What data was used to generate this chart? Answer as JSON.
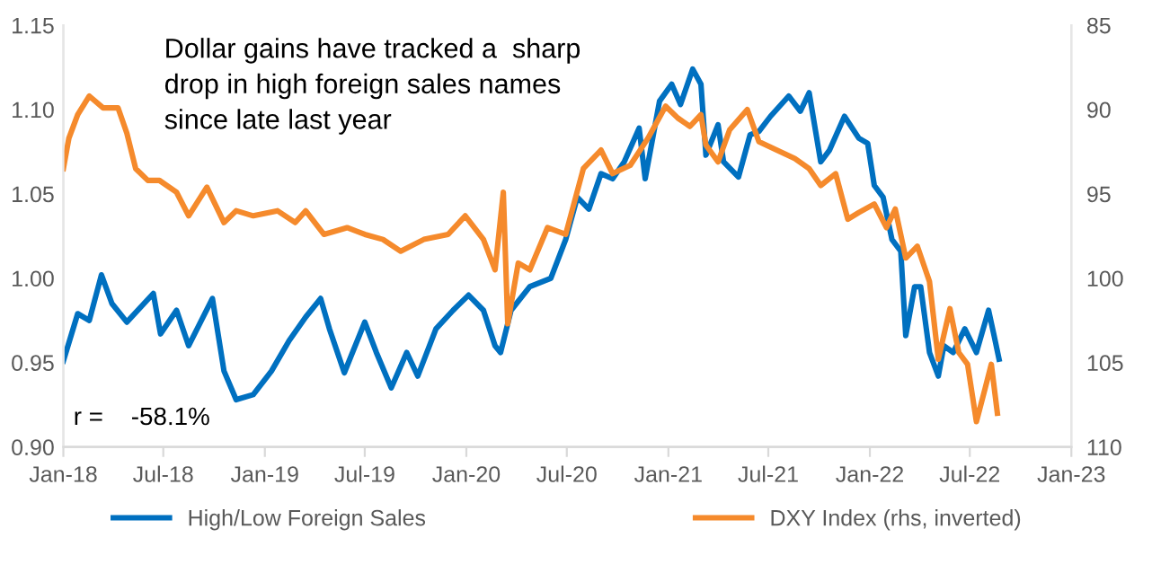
{
  "chart_data": {
    "type": "line",
    "annotations": [
      "Dollar gains have tracked a  sharp\ndrop in high foreign sales names\nsince late last year",
      "r =    -58.1%"
    ],
    "xlim": [
      "2018-01-01",
      "2023-01-01"
    ],
    "xticks": [
      {
        "value": "2018-01-01",
        "label": "Jan-18"
      },
      {
        "value": "2018-07-01",
        "label": "Jul-18"
      },
      {
        "value": "2019-01-01",
        "label": "Jan-19"
      },
      {
        "value": "2019-07-01",
        "label": "Jul-19"
      },
      {
        "value": "2020-01-01",
        "label": "Jan-20"
      },
      {
        "value": "2020-07-01",
        "label": "Jul-20"
      },
      {
        "value": "2021-01-01",
        "label": "Jan-21"
      },
      {
        "value": "2021-07-01",
        "label": "Jul-21"
      },
      {
        "value": "2022-01-01",
        "label": "Jan-22"
      },
      {
        "value": "2022-07-01",
        "label": "Jul-22"
      },
      {
        "value": "2023-01-01",
        "label": "Jan-23"
      }
    ],
    "ylim": [
      0.9,
      1.15
    ],
    "yticks": [
      {
        "value": 0.9,
        "label": "0.90"
      },
      {
        "value": 0.95,
        "label": "0.95"
      },
      {
        "value": 1.0,
        "label": "1.00"
      },
      {
        "value": 1.05,
        "label": "1.05"
      },
      {
        "value": 1.1,
        "label": "1.10"
      },
      {
        "value": 1.15,
        "label": "1.15"
      }
    ],
    "y2lim": [
      110,
      85
    ],
    "y2ticks": [
      85,
      90,
      95,
      100,
      105,
      110
    ],
    "legend": "bottom",
    "series": [
      {
        "name": "High/Low Foreign Sales",
        "color": "#0070c0",
        "x": [
          "2018-01-01",
          "2018-01-27",
          "2018-02-17",
          "2018-03-11",
          "2018-03-30",
          "2018-04-26",
          "2018-06-13",
          "2018-06-26",
          "2018-07-25",
          "2018-08-16",
          "2018-09-28",
          "2018-10-19",
          "2018-11-10",
          "2018-12-11",
          "2019-01-13",
          "2019-02-14",
          "2019-03-16",
          "2019-04-12",
          "2019-04-28",
          "2019-05-25",
          "2019-07-01",
          "2019-07-22",
          "2019-08-18",
          "2019-09-15",
          "2019-10-05",
          "2019-11-07",
          "2019-12-08",
          "2020-01-05",
          "2020-02-01",
          "2020-02-22",
          "2020-03-03",
          "2020-03-22",
          "2020-04-25",
          "2020-06-02",
          "2020-06-29",
          "2020-07-20",
          "2020-08-10",
          "2020-09-01",
          "2020-09-22",
          "2020-10-13",
          "2020-11-09",
          "2020-11-20",
          "2020-12-16",
          "2021-01-07",
          "2021-01-23",
          "2021-02-14",
          "2021-03-01",
          "2021-03-10",
          "2021-04-01",
          "2021-04-11",
          "2021-05-08",
          "2021-05-29",
          "2021-06-14",
          "2021-07-05",
          "2021-08-07",
          "2021-08-28",
          "2021-09-13",
          "2021-10-04",
          "2021-10-20",
          "2021-11-16",
          "2021-12-12",
          "2021-12-28",
          "2022-01-09",
          "2022-01-25",
          "2022-02-10",
          "2022-02-26",
          "2022-03-07",
          "2022-03-23",
          "2022-04-03",
          "2022-04-19",
          "2022-05-05",
          "2022-05-15",
          "2022-06-01",
          "2022-06-22",
          "2022-07-13",
          "2022-08-04",
          "2022-08-14",
          "2022-08-23"
        ],
        "values": [
          0.951,
          0.979,
          0.975,
          1.002,
          0.985,
          0.974,
          0.991,
          0.967,
          0.981,
          0.96,
          0.988,
          0.945,
          0.928,
          0.931,
          0.945,
          0.963,
          0.977,
          0.988,
          0.97,
          0.944,
          0.974,
          0.956,
          0.935,
          0.956,
          0.942,
          0.97,
          0.981,
          0.99,
          0.981,
          0.96,
          0.956,
          0.981,
          0.995,
          1.0,
          1.023,
          1.048,
          1.041,
          1.062,
          1.059,
          1.069,
          1.089,
          1.059,
          1.105,
          1.115,
          1.103,
          1.124,
          1.115,
          1.073,
          1.091,
          1.069,
          1.06,
          1.085,
          1.087,
          1.096,
          1.108,
          1.099,
          1.11,
          1.069,
          1.076,
          1.096,
          1.083,
          1.08,
          1.055,
          1.048,
          1.023,
          1.016,
          0.966,
          0.995,
          0.995,
          0.956,
          0.942,
          0.96,
          0.956,
          0.97,
          0.956,
          0.981,
          0.966,
          0.952
        ]
      },
      {
        "name": "DXY Index (rhs, inverted)",
        "color": "#f58a2c",
        "axis": "y2",
        "x": [
          "2018-01-01",
          "2018-01-11",
          "2018-01-27",
          "2018-02-17",
          "2018-03-14",
          "2018-04-10",
          "2018-04-26",
          "2018-05-12",
          "2018-06-03",
          "2018-06-24",
          "2018-07-25",
          "2018-08-16",
          "2018-09-18",
          "2018-10-19",
          "2018-11-10",
          "2018-12-11",
          "2019-01-24",
          "2019-02-25",
          "2019-03-16",
          "2019-04-18",
          "2019-05-30",
          "2019-07-01",
          "2019-08-03",
          "2019-09-04",
          "2019-10-16",
          "2019-11-29",
          "2019-12-30",
          "2020-02-01",
          "2020-02-22",
          "2020-03-08",
          "2020-03-16",
          "2020-04-04",
          "2020-04-25",
          "2020-05-27",
          "2020-06-29",
          "2020-07-31",
          "2020-09-01",
          "2020-09-22",
          "2020-10-24",
          "2020-11-25",
          "2020-12-27",
          "2021-01-18",
          "2021-02-09",
          "2021-03-01",
          "2021-03-10",
          "2021-04-01",
          "2021-04-22",
          "2021-05-24",
          "2021-06-14",
          "2021-07-16",
          "2021-08-18",
          "2021-09-13",
          "2021-10-04",
          "2021-10-31",
          "2021-11-22",
          "2021-12-12",
          "2022-01-09",
          "2022-01-31",
          "2022-02-16",
          "2022-03-07",
          "2022-03-28",
          "2022-04-19",
          "2022-05-05",
          "2022-05-26",
          "2022-06-11",
          "2022-06-27",
          "2022-07-13",
          "2022-07-29",
          "2022-08-09",
          "2022-08-20"
        ],
        "values": [
          93.5,
          91.7,
          90.3,
          89.2,
          89.9,
          89.9,
          91.4,
          93.5,
          94.2,
          94.2,
          94.9,
          96.3,
          94.6,
          96.7,
          96.0,
          96.3,
          96.0,
          96.7,
          96.0,
          97.4,
          97.0,
          97.4,
          97.7,
          98.4,
          97.7,
          97.4,
          96.3,
          97.7,
          99.5,
          94.9,
          102.7,
          99.1,
          99.5,
          97.0,
          97.4,
          93.5,
          92.4,
          93.8,
          93.3,
          91.7,
          89.8,
          90.5,
          91.0,
          90.3,
          92.1,
          93.1,
          91.2,
          90.0,
          91.9,
          92.4,
          92.9,
          93.5,
          94.5,
          93.8,
          96.5,
          96.1,
          95.6,
          97.0,
          95.9,
          98.8,
          98.1,
          100.2,
          104.8,
          101.8,
          104.4,
          105.1,
          108.5,
          106.5,
          105.1,
          108.0
        ]
      }
    ]
  }
}
